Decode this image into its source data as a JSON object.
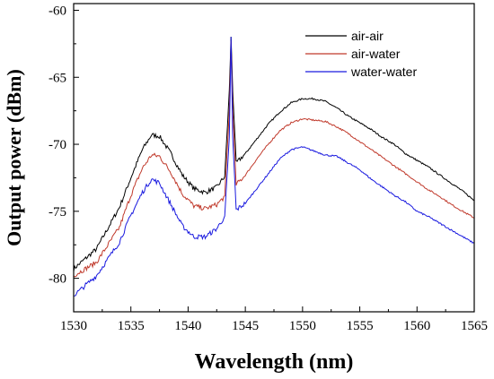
{
  "chart_data": {
    "type": "line",
    "xlabel": "Wavelength (nm)",
    "ylabel": "Output power (dBm)",
    "xlim": [
      1530,
      1565
    ],
    "ylim": [
      -82.5,
      -59.5
    ],
    "xticks": [
      1530,
      1535,
      1540,
      1545,
      1550,
      1555,
      1560,
      1565
    ],
    "yticks": [
      -80,
      -75,
      -70,
      -65,
      -60
    ],
    "xtick_labels": [
      "1530",
      "1535",
      "1540",
      "1545",
      "1550",
      "1555",
      "1560",
      "1565"
    ],
    "ytick_labels": [
      "-80",
      "-75",
      "-70",
      "-65",
      "-60"
    ],
    "grid": false,
    "legend_position": "top-right",
    "series": [
      {
        "name": "air-air",
        "color": "#000000",
        "x": [
          1530,
          1532,
          1534,
          1535,
          1536,
          1536.8,
          1537.5,
          1538.5,
          1539.5,
          1540.5,
          1541.5,
          1542.5,
          1543.2,
          1543.6,
          1543.75,
          1543.9,
          1544.2,
          1545,
          1546,
          1547,
          1548,
          1549,
          1550,
          1551,
          1552,
          1553,
          1554,
          1555,
          1556,
          1557,
          1558,
          1559,
          1560,
          1561,
          1562,
          1563,
          1564,
          1565
        ],
        "y": [
          -79.3,
          -77.8,
          -74.7,
          -72.5,
          -70.4,
          -69.3,
          -69.4,
          -70.7,
          -72.3,
          -73.3,
          -73.6,
          -73.2,
          -72.4,
          -66.0,
          -62.0,
          -66.0,
          -71.4,
          -70.7,
          -69.6,
          -68.5,
          -67.6,
          -66.9,
          -66.6,
          -66.6,
          -66.8,
          -67.3,
          -67.9,
          -68.4,
          -68.9,
          -69.5,
          -70.0,
          -70.7,
          -71.2,
          -71.7,
          -72.3,
          -72.9,
          -73.5,
          -74.2
        ]
      },
      {
        "name": "air-water",
        "color": "#c0392b",
        "x": [
          1530,
          1532,
          1534,
          1535,
          1536,
          1536.8,
          1537.5,
          1538.5,
          1539.5,
          1540.5,
          1541.5,
          1542.5,
          1543.2,
          1543.6,
          1543.75,
          1543.9,
          1544.2,
          1545,
          1546,
          1547,
          1548,
          1549,
          1550,
          1551,
          1552,
          1553,
          1554,
          1555,
          1556,
          1557,
          1558,
          1559,
          1560,
          1561,
          1562,
          1563,
          1564,
          1565
        ],
        "y": [
          -79.8,
          -78.8,
          -76.2,
          -73.8,
          -71.8,
          -70.8,
          -70.9,
          -72.1,
          -73.7,
          -74.6,
          -74.8,
          -74.5,
          -73.9,
          -67.5,
          -62.3,
          -67.5,
          -73.0,
          -72.3,
          -71.1,
          -70.0,
          -69.0,
          -68.4,
          -68.1,
          -68.2,
          -68.3,
          -68.7,
          -69.2,
          -69.8,
          -70.4,
          -71.0,
          -71.6,
          -72.2,
          -72.8,
          -73.4,
          -73.9,
          -74.5,
          -75.0,
          -75.5
        ]
      },
      {
        "name": "water-water",
        "color": "#1a1adf",
        "x": [
          1530,
          1532,
          1534,
          1535,
          1536,
          1536.8,
          1537.5,
          1538.5,
          1539.5,
          1540.5,
          1541.5,
          1542.5,
          1543.2,
          1543.6,
          1543.75,
          1543.9,
          1544.2,
          1545,
          1546,
          1547,
          1548,
          1549,
          1550,
          1551,
          1552,
          1553,
          1554,
          1555,
          1556,
          1557,
          1558,
          1559,
          1560,
          1561,
          1562,
          1563,
          1564,
          1565
        ],
        "y": [
          -81.3,
          -79.8,
          -77.3,
          -75.3,
          -73.6,
          -72.6,
          -72.9,
          -74.5,
          -76.1,
          -76.9,
          -76.9,
          -76.3,
          -75.4,
          -69.5,
          -62.0,
          -69.5,
          -74.9,
          -74.4,
          -73.3,
          -72.2,
          -71.1,
          -70.4,
          -70.2,
          -70.5,
          -70.8,
          -70.9,
          -71.4,
          -71.9,
          -72.6,
          -73.2,
          -73.8,
          -74.3,
          -75.0,
          -75.4,
          -75.9,
          -76.4,
          -76.9,
          -77.4
        ]
      }
    ]
  }
}
